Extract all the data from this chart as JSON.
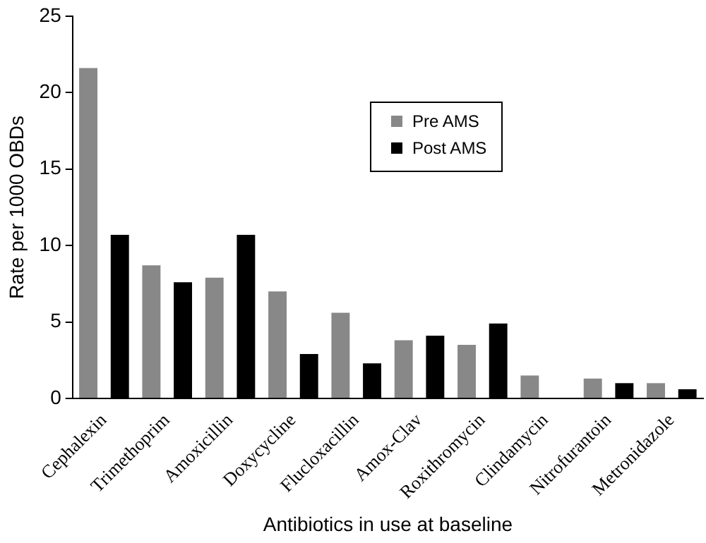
{
  "chart_data": {
    "type": "bar",
    "xlabel": "Antibiotics in use at baseline",
    "ylabel": "Rate per 1000 OBDs",
    "categories": [
      "Cephalexin",
      "Trimethoprim",
      "Amoxicillin",
      "Doxycycline",
      "Flucloxacillin",
      "Amox-Clav",
      "Roxithromycin",
      "Clindamycin",
      "Nitrofurantoin",
      "Metronidazole"
    ],
    "series": [
      {
        "name": "Pre AMS",
        "color": "#888888",
        "values": [
          21.6,
          8.7,
          7.9,
          7.0,
          5.6,
          3.8,
          3.5,
          1.5,
          1.3,
          1.0
        ]
      },
      {
        "name": "Post AMS",
        "color": "#000000",
        "values": [
          10.7,
          7.6,
          10.7,
          2.9,
          2.3,
          4.1,
          4.9,
          0,
          1.0,
          0.6
        ]
      }
    ],
    "ylim": [
      0,
      25
    ],
    "yticks": [
      0,
      5,
      10,
      15,
      20,
      25
    ],
    "grid": false,
    "legend": "top right"
  }
}
